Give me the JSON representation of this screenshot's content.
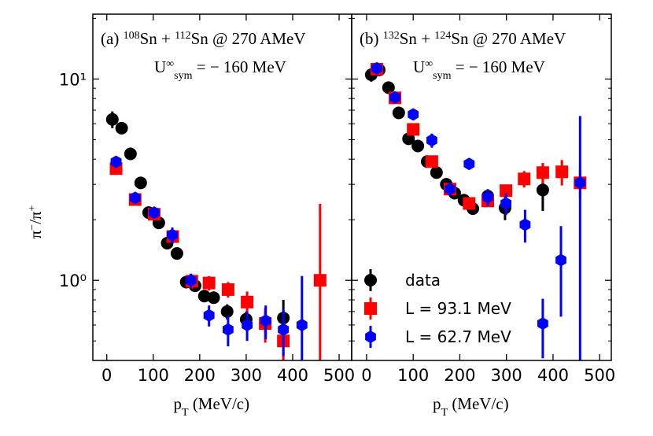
{
  "chart_data": [
    {
      "type": "scatter",
      "log_y": true,
      "xlim": [
        -30,
        527
      ],
      "ylim": [
        0.4,
        21
      ],
      "xticks": [
        0,
        100,
        200,
        300,
        400,
        500
      ],
      "yticks": [
        {
          "value": 1,
          "label": "10⁰"
        },
        {
          "value": 10,
          "label": "10¹"
        }
      ],
      "yminorticks": [
        0.4,
        0.5,
        0.6,
        0.7,
        0.8,
        0.9,
        2,
        3,
        4,
        5,
        6,
        7,
        8,
        9,
        20
      ],
      "title": [
        {
          "text": "(a) "
        },
        {
          "text": "108",
          "sup": true
        },
        {
          "text": "Sn + "
        },
        {
          "text": "112",
          "sup": true
        },
        {
          "text": "Sn @ 270 AMeV"
        }
      ],
      "subtitle": [
        {
          "text": "U"
        },
        {
          "text": "∞",
          "sup": true
        },
        {
          "text": "sym",
          "sub": true
        },
        {
          "text": " = − 160 MeV"
        }
      ],
      "ylabel": [
        {
          "text": "π"
        },
        {
          "text": "−",
          "sup": true
        },
        {
          "text": "/π"
        },
        {
          "text": "+",
          "sup": true
        }
      ],
      "xlabel": [
        {
          "text": "p"
        },
        {
          "text": "T",
          "sub": true
        },
        {
          "text": " (MeV/c)"
        }
      ],
      "series": [
        {
          "marker": "circle",
          "color": "#000000",
          "x": [
            12,
            32,
            51,
            73,
            90,
            112,
            130,
            151,
            171,
            190,
            210,
            230,
            259,
            300,
            341,
            380
          ],
          "values": [
            6.3,
            5.7,
            4.25,
            3.05,
            2.17,
            1.93,
            1.53,
            1.36,
            0.98,
            0.94,
            0.835,
            0.82,
            0.7,
            0.64,
            0.62,
            0.65
          ],
          "errors": [
            0.6,
            0.3,
            0.2,
            0.15,
            0.1,
            0.1,
            0.08,
            0.06,
            0.06,
            0.05,
            0.05,
            0.05,
            0.06,
            0.06,
            0.08,
            0.15
          ]
        },
        {
          "marker": "square",
          "color": "#ff0000",
          "x": [
            20,
            61,
            102,
            142,
            183,
            220,
            261,
            302,
            341,
            380,
            459
          ],
          "values": [
            3.59,
            2.52,
            2.13,
            1.65,
            0.99,
            0.97,
            0.9,
            0.78,
            0.61,
            0.5,
            1.0
          ],
          "errors": [
            0.2,
            0.12,
            0.1,
            0.1,
            0.08,
            0.08,
            0.08,
            0.1,
            0.12,
            0.15,
            1.4
          ]
        },
        {
          "marker": "hexagon",
          "color": "#0000ff",
          "x": [
            20,
            61,
            102,
            141,
            181,
            220,
            261,
            302,
            342,
            380,
            420
          ],
          "values": [
            3.88,
            2.57,
            2.17,
            1.68,
            1.0,
            0.67,
            0.57,
            0.6,
            0.63,
            0.57,
            0.6
          ],
          "errors": [
            0.2,
            0.12,
            0.1,
            0.15,
            0.08,
            0.08,
            0.1,
            0.1,
            0.12,
            0.15,
            0.45
          ]
        }
      ]
    },
    {
      "type": "scatter",
      "log_y": true,
      "xlim": [
        -32,
        525
      ],
      "ylim": [
        0.4,
        21
      ],
      "legend": "lower left",
      "xticks": [
        0,
        100,
        200,
        300,
        400,
        500
      ],
      "yminorticks": [
        0.4,
        0.5,
        0.6,
        0.7,
        0.8,
        0.9,
        2,
        3,
        4,
        5,
        6,
        7,
        8,
        9,
        20
      ],
      "ymajorticks": [
        1,
        10
      ],
      "title": [
        {
          "text": "(b) "
        },
        {
          "text": "132",
          "sup": true
        },
        {
          "text": "Sn + "
        },
        {
          "text": "124",
          "sup": true
        },
        {
          "text": "Sn @ 270 AMeV"
        }
      ],
      "subtitle": [
        {
          "text": "U"
        },
        {
          "text": "∞",
          "sup": true
        },
        {
          "text": "sym",
          "sub": true
        },
        {
          "text": " = − 160 MeV"
        }
      ],
      "xlabel": [
        {
          "text": "p"
        },
        {
          "text": "T",
          "sub": true
        },
        {
          "text": " (MeV/c)"
        }
      ],
      "series": [
        {
          "name": "data",
          "marker": "circle",
          "color": "#000000",
          "x": [
            10,
            27,
            47,
            69,
            90,
            110,
            130,
            150,
            171,
            189,
            209,
            228,
            260,
            297,
            378
          ],
          "values": [
            10.5,
            11.1,
            9.06,
            6.79,
            5.05,
            4.65,
            3.89,
            3.43,
            3.0,
            2.71,
            2.5,
            2.27,
            2.62,
            2.29,
            2.81
          ],
          "errors": [
            0.8,
            0.6,
            0.4,
            0.3,
            0.2,
            0.2,
            0.2,
            0.15,
            0.12,
            0.12,
            0.12,
            0.15,
            0.2,
            0.3,
            0.6
          ]
        },
        {
          "name": "L = 93.1 MeV",
          "marker": "square",
          "color": "#ff0000",
          "x": [
            22,
            61,
            100,
            140,
            179,
            220,
            260,
            299,
            338,
            378,
            419,
            458
          ],
          "values": [
            11.2,
            8.06,
            5.62,
            3.89,
            2.84,
            2.41,
            2.48,
            2.79,
            3.19,
            3.43,
            3.46,
            3.05
          ],
          "errors": [
            0.6,
            0.4,
            0.3,
            0.2,
            0.15,
            0.15,
            0.15,
            0.2,
            0.3,
            0.4,
            0.5,
            0.5
          ]
        },
        {
          "name": "L = 62.7 MeV",
          "marker": "hexagon",
          "color": "#0000ff",
          "x": [
            22,
            61,
            100,
            140,
            179,
            220,
            260,
            299,
            340,
            378,
            417,
            458
          ],
          "values": [
            11.3,
            8.1,
            6.67,
            4.96,
            2.84,
            3.79,
            2.59,
            2.41,
            1.89,
            0.61,
            1.26,
            3.05
          ],
          "errors": [
            0.6,
            0.4,
            0.3,
            0.4,
            0.2,
            0.15,
            0.25,
            0.3,
            0.35,
            0.2,
            0.6,
            3.5
          ]
        }
      ]
    }
  ]
}
